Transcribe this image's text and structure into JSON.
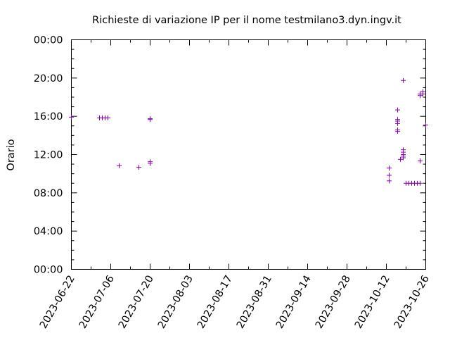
{
  "chart_data": {
    "type": "scatter",
    "title": "Richieste di variazione IP per il nome testmilano3.dyn.ingv.it",
    "xlabel": "",
    "ylabel": "Orario",
    "x_type": "date",
    "xlim": [
      "2023-06-22",
      "2023-10-26"
    ],
    "ylim": [
      "00:00",
      "24:00"
    ],
    "x_ticks": [
      "2023-06-22",
      "2023-07-06",
      "2023-07-20",
      "2023-08-03",
      "2023-08-17",
      "2023-08-31",
      "2023-09-14",
      "2023-09-28",
      "2023-10-12",
      "2023-10-26"
    ],
    "y_ticks": [
      "00:00",
      "04:00",
      "08:00",
      "12:00",
      "16:00",
      "20:00",
      "00:00"
    ],
    "grid": false,
    "legend": "none",
    "marker": "+",
    "marker_color": "#8b00c0",
    "series": [
      {
        "points": [
          {
            "x": "2023-06-22",
            "y": "15:55"
          },
          {
            "x": "2023-07-02",
            "y": "15:50"
          },
          {
            "x": "2023-07-03",
            "y": "15:50"
          },
          {
            "x": "2023-07-04",
            "y": "15:50"
          },
          {
            "x": "2023-07-05",
            "y": "15:50"
          },
          {
            "x": "2023-07-09",
            "y": "10:50"
          },
          {
            "x": "2023-07-16",
            "y": "10:40"
          },
          {
            "x": "2023-07-20",
            "y": "15:45"
          },
          {
            "x": "2023-07-20",
            "y": "15:40"
          },
          {
            "x": "2023-07-20",
            "y": "11:15"
          },
          {
            "x": "2023-07-20",
            "y": "11:05"
          },
          {
            "x": "2023-10-13",
            "y": "10:35"
          },
          {
            "x": "2023-10-13",
            "y": "09:50"
          },
          {
            "x": "2023-10-13",
            "y": "09:15"
          },
          {
            "x": "2023-10-16",
            "y": "16:40"
          },
          {
            "x": "2023-10-16",
            "y": "15:40"
          },
          {
            "x": "2023-10-16",
            "y": "15:30"
          },
          {
            "x": "2023-10-16",
            "y": "15:15"
          },
          {
            "x": "2023-10-16",
            "y": "14:35"
          },
          {
            "x": "2023-10-16",
            "y": "14:25"
          },
          {
            "x": "2023-10-17",
            "y": "11:30"
          },
          {
            "x": "2023-10-18",
            "y": "19:45"
          },
          {
            "x": "2023-10-18",
            "y": "12:30"
          },
          {
            "x": "2023-10-18",
            "y": "12:15"
          },
          {
            "x": "2023-10-18",
            "y": "12:00"
          },
          {
            "x": "2023-10-18",
            "y": "11:50"
          },
          {
            "x": "2023-10-18",
            "y": "11:40"
          },
          {
            "x": "2023-10-19",
            "y": "09:00"
          },
          {
            "x": "2023-10-20",
            "y": "09:00"
          },
          {
            "x": "2023-10-21",
            "y": "09:00"
          },
          {
            "x": "2023-10-22",
            "y": "09:00"
          },
          {
            "x": "2023-10-23",
            "y": "09:00"
          },
          {
            "x": "2023-10-24",
            "y": "09:00"
          },
          {
            "x": "2023-10-24",
            "y": "11:20"
          },
          {
            "x": "2023-10-24",
            "y": "18:20"
          },
          {
            "x": "2023-10-24",
            "y": "18:10"
          },
          {
            "x": "2023-10-25",
            "y": "18:35"
          },
          {
            "x": "2023-10-25",
            "y": "18:20"
          },
          {
            "x": "2023-10-26",
            "y": "15:05"
          }
        ]
      }
    ]
  }
}
